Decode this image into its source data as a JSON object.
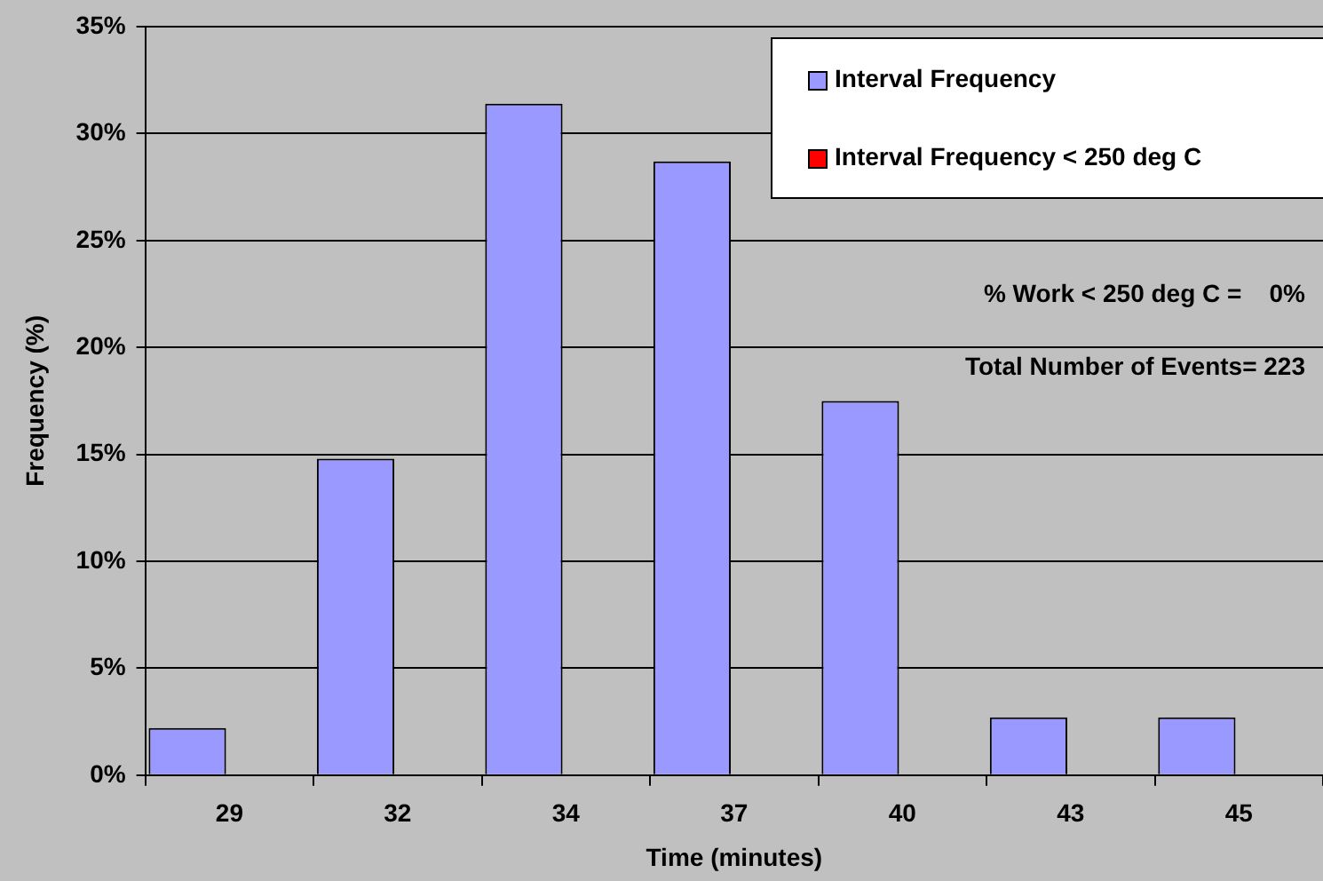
{
  "chart_data": {
    "type": "bar",
    "xlabel": "Time (minutes)",
    "ylabel": "Frequency (%)",
    "categories": [
      "29",
      "32",
      "34",
      "37",
      "40",
      "43",
      "45"
    ],
    "series": [
      {
        "name": "Interval Frequency",
        "color": "#9999ff",
        "values": [
          2.2,
          14.8,
          31.4,
          28.7,
          17.5,
          2.7,
          2.7
        ]
      },
      {
        "name": "Interval Frequency < 250 deg C",
        "color": "#ff0000",
        "values": [
          0,
          0,
          0,
          0,
          0,
          0,
          0
        ]
      }
    ],
    "ylim": [
      0,
      35
    ],
    "yticks": [
      {
        "value": 0,
        "label": "0%"
      },
      {
        "value": 5,
        "label": "5%"
      },
      {
        "value": 10,
        "label": "10%"
      },
      {
        "value": 15,
        "label": "15%"
      },
      {
        "value": 20,
        "label": "20%"
      },
      {
        "value": 25,
        "label": "25%"
      },
      {
        "value": 30,
        "label": "30%"
      },
      {
        "value": 35,
        "label": "35%"
      }
    ],
    "grid": "y",
    "legend": "top right",
    "annotations": [
      "% Work < 250 deg C =    0%",
      "Total Number of Events= 223"
    ]
  }
}
